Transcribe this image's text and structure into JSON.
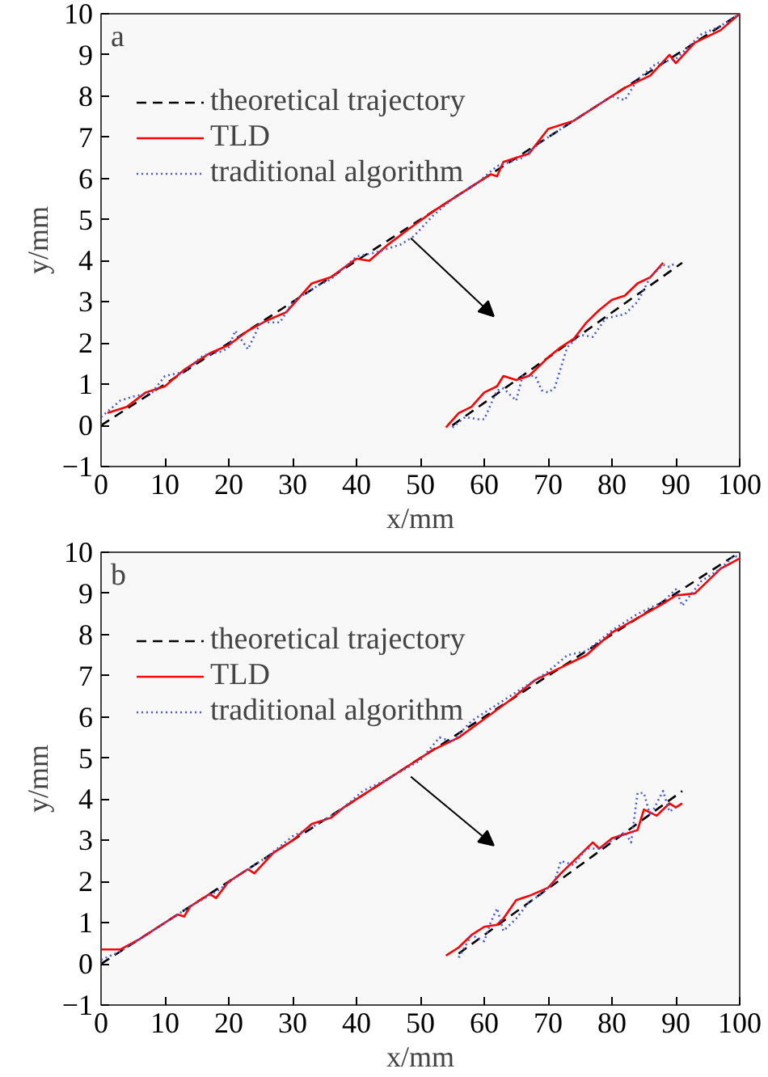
{
  "chart_data": [
    {
      "type": "line",
      "annotations": [
        "a"
      ],
      "xlabel": "x/mm",
      "ylabel": "y/mm",
      "xlim": [
        0,
        100
      ],
      "ylim": [
        -1,
        10
      ],
      "xticks": [
        0,
        10,
        20,
        30,
        40,
        50,
        60,
        70,
        80,
        90,
        100
      ],
      "yticks": [
        {
          "value": -1,
          "label": "−1"
        },
        0,
        1,
        2,
        3,
        4,
        5,
        6,
        7,
        8,
        9,
        10
      ],
      "grid": false,
      "legend": "top left",
      "series": [
        {
          "name": "theoretical trajectory",
          "color": "#000000",
          "line_style": "dashed",
          "x": [
            0,
            100
          ],
          "values": [
            0,
            10
          ]
        },
        {
          "name": "TLD",
          "color": "#ff0000",
          "line_style": "solid",
          "x": [
            1,
            4,
            7,
            10,
            13,
            17,
            20,
            23,
            26,
            29,
            33,
            36,
            40,
            42,
            45,
            48,
            52,
            55,
            58,
            61,
            62,
            63,
            67,
            70,
            74,
            78,
            82,
            86,
            89,
            90,
            93,
            97,
            100
          ],
          "values": [
            0.3,
            0.45,
            0.8,
            0.95,
            1.35,
            1.75,
            1.95,
            2.3,
            2.55,
            2.75,
            3.45,
            3.6,
            4.05,
            4.0,
            4.4,
            4.75,
            5.2,
            5.5,
            5.8,
            6.1,
            6.05,
            6.4,
            6.6,
            7.2,
            7.4,
            7.8,
            8.2,
            8.5,
            9.0,
            8.8,
            9.3,
            9.6,
            10
          ]
        },
        {
          "name": "traditional algorithm",
          "color": "#4a5ad0",
          "line_style": "dotted",
          "x": [
            0,
            3,
            5,
            8,
            10,
            13,
            16,
            19,
            20,
            21,
            23,
            25,
            28,
            30,
            34,
            36,
            40,
            43,
            47,
            49,
            52,
            55,
            59,
            62,
            66,
            69,
            72,
            76,
            80,
            82,
            84,
            87,
            90,
            94,
            97,
            100
          ],
          "values": [
            0.2,
            0.6,
            0.7,
            0.8,
            1.2,
            1.3,
            1.7,
            1.8,
            1.9,
            2.3,
            1.85,
            2.5,
            2.5,
            3.0,
            3.4,
            3.55,
            4.1,
            4.2,
            4.4,
            4.6,
            5.1,
            5.5,
            5.9,
            6.3,
            6.5,
            6.9,
            7.2,
            7.6,
            8.0,
            7.9,
            8.4,
            8.8,
            8.9,
            9.5,
            9.7,
            10
          ]
        },
        {
          "color": "#000000",
          "line_style": "dashed",
          "x": [
            55,
            91
          ],
          "values": [
            0,
            3.95
          ]
        },
        {
          "color": "#ff0000",
          "line_style": "solid",
          "x": [
            54,
            56,
            58,
            60,
            62,
            63,
            65,
            67,
            70,
            72,
            74,
            76,
            78,
            80,
            82,
            84,
            86,
            88
          ],
          "values": [
            -0.05,
            0.3,
            0.45,
            0.8,
            0.95,
            1.2,
            1.1,
            1.2,
            1.65,
            1.9,
            2.1,
            2.5,
            2.8,
            3.05,
            3.15,
            3.45,
            3.6,
            3.95
          ]
        },
        {
          "color": "#4a5ad0",
          "line_style": "dotted",
          "x": [
            55,
            57,
            59,
            60,
            62,
            63,
            65,
            66,
            68,
            69,
            70,
            71,
            73,
            75,
            77,
            79,
            82,
            84,
            86,
            88,
            89,
            90
          ],
          "values": [
            -0.05,
            0.2,
            0.15,
            0.15,
            0.85,
            0.9,
            0.6,
            1.2,
            1.2,
            0.85,
            0.8,
            0.9,
            1.9,
            2.2,
            2.15,
            2.6,
            2.7,
            3.0,
            3.6,
            3.9,
            3.85,
            3.95
          ]
        }
      ]
    },
    {
      "type": "line",
      "annotations": [
        "b"
      ],
      "xlabel": "x/mm",
      "ylabel": "y/mm",
      "xlim": [
        0,
        100
      ],
      "ylim": [
        -1,
        10
      ],
      "xticks": [
        0,
        10,
        20,
        30,
        40,
        50,
        60,
        70,
        80,
        90,
        100
      ],
      "yticks": [
        {
          "value": -1,
          "label": "−1"
        },
        0,
        1,
        2,
        3,
        4,
        5,
        6,
        7,
        8,
        9,
        10
      ],
      "grid": false,
      "legend": "top left",
      "series": [
        {
          "name": "theoretical trajectory",
          "color": "#000000",
          "line_style": "dashed",
          "x": [
            0,
            100
          ],
          "values": [
            0,
            10
          ]
        },
        {
          "name": "TLD",
          "color": "#ff0000",
          "line_style": "solid",
          "x": [
            0,
            3,
            6,
            9,
            12,
            13,
            14,
            17,
            18,
            20,
            23,
            24,
            27,
            30,
            33,
            36,
            38,
            40,
            44,
            48,
            52,
            56,
            60,
            64,
            68,
            72,
            76,
            80,
            84,
            88,
            90,
            93,
            97,
            100
          ],
          "values": [
            0.35,
            0.35,
            0.6,
            0.9,
            1.2,
            1.15,
            1.4,
            1.7,
            1.6,
            2.0,
            2.3,
            2.2,
            2.7,
            3.0,
            3.4,
            3.55,
            3.8,
            4.0,
            4.4,
            4.8,
            5.2,
            5.5,
            5.95,
            6.4,
            6.9,
            7.2,
            7.5,
            8.05,
            8.4,
            8.75,
            8.95,
            9.0,
            9.6,
            9.85
          ]
        },
        {
          "name": "traditional algorithm",
          "color": "#4a5ad0",
          "line_style": "dotted",
          "x": [
            0,
            3,
            7,
            10,
            14,
            18,
            22,
            26,
            30,
            34,
            38,
            41,
            45,
            50,
            53,
            55,
            58,
            61,
            64,
            66,
            70,
            73,
            76,
            80,
            84,
            88,
            90,
            91,
            94,
            97,
            99,
            100
          ],
          "values": [
            0.1,
            0.3,
            0.7,
            1.0,
            1.4,
            1.75,
            2.2,
            2.6,
            3.1,
            3.4,
            3.8,
            4.2,
            4.5,
            4.95,
            5.5,
            5.4,
            5.9,
            6.2,
            6.5,
            6.7,
            7.1,
            7.5,
            7.6,
            8.1,
            8.5,
            8.8,
            9.1,
            8.7,
            9.3,
            9.6,
            9.9,
            9.9
          ]
        },
        {
          "color": "#000000",
          "line_style": "dashed",
          "x": [
            56,
            91
          ],
          "values": [
            0.25,
            4.2
          ]
        },
        {
          "color": "#ff0000",
          "line_style": "solid",
          "x": [
            54,
            56,
            58,
            60,
            62,
            63,
            65,
            67,
            70,
            72,
            74,
            77,
            78,
            80,
            82,
            84,
            85,
            87,
            89,
            90,
            91
          ],
          "values": [
            0.2,
            0.4,
            0.7,
            0.9,
            0.95,
            1.1,
            1.55,
            1.65,
            1.85,
            2.2,
            2.5,
            2.95,
            2.8,
            3.05,
            3.15,
            3.25,
            3.75,
            3.6,
            3.9,
            3.8,
            3.9
          ]
        },
        {
          "color": "#4a5ad0",
          "line_style": "dotted",
          "x": [
            56,
            58,
            60,
            61,
            62,
            63,
            65,
            67,
            69,
            71,
            72,
            74,
            76,
            78,
            80,
            82,
            83,
            84,
            85,
            86,
            88,
            89,
            90
          ],
          "values": [
            0.15,
            0.7,
            0.55,
            1.0,
            1.35,
            0.8,
            1.1,
            1.5,
            1.7,
            2.0,
            2.5,
            2.4,
            2.8,
            2.8,
            3.0,
            3.2,
            2.95,
            4.15,
            4.15,
            3.6,
            4.2,
            3.7,
            3.8
          ]
        }
      ]
    }
  ]
}
